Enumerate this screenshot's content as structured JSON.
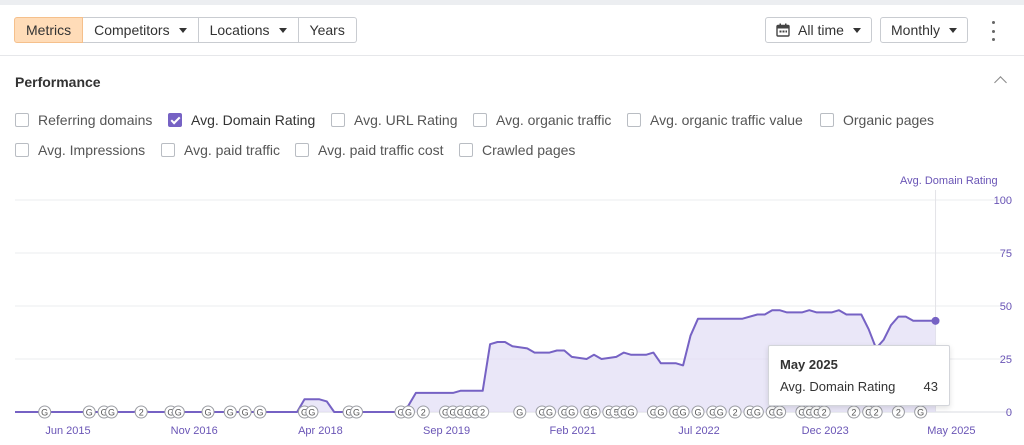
{
  "toolbar": {
    "tabs": [
      {
        "label": "Metrics",
        "active": true,
        "has_caret": false
      },
      {
        "label": "Competitors",
        "active": false,
        "has_caret": true
      },
      {
        "label": "Locations",
        "active": false,
        "has_caret": true
      },
      {
        "label": "Years",
        "active": false,
        "has_caret": false
      }
    ],
    "date_range": "All time",
    "interval": "Monthly"
  },
  "performance": {
    "title": "Performance",
    "metrics_row1": [
      {
        "label": "Referring domains",
        "checked": false
      },
      {
        "label": "Avg. Domain Rating",
        "checked": true
      },
      {
        "label": "Avg. URL Rating",
        "checked": false
      },
      {
        "label": "Avg. organic traffic",
        "checked": false
      },
      {
        "label": "Avg. organic traffic value",
        "checked": false
      },
      {
        "label": "Organic pages",
        "checked": false
      }
    ],
    "metrics_row2": [
      {
        "label": "Avg. Impressions",
        "checked": false
      },
      {
        "label": "Avg. paid traffic",
        "checked": false
      },
      {
        "label": "Avg. paid traffic cost",
        "checked": false
      },
      {
        "label": "Crawled pages",
        "checked": false
      }
    ]
  },
  "colors": {
    "accent": "#7662c4",
    "active_tab_bg": "#ffdcb8",
    "area_fill": "#e3dff5"
  },
  "chart_data": {
    "type": "area",
    "title": "",
    "y_axis_label": "Avg. Domain Rating",
    "ylim": [
      0,
      100
    ],
    "yticks": [
      0,
      25,
      50,
      75,
      100
    ],
    "x_tick_labels": [
      "Jun 2015",
      "Nov 2016",
      "Apr 2018",
      "Sep 2019",
      "Feb 2021",
      "Jul 2022",
      "Dec 2023",
      "May 2025"
    ],
    "grid": true,
    "series": [
      {
        "name": "Avg. Domain Rating",
        "points": [
          [
            "2015-01",
            0
          ],
          [
            "2016-05",
            0
          ],
          [
            "2016-06",
            1
          ],
          [
            "2016-07",
            0
          ],
          [
            "2017-11",
            0
          ],
          [
            "2018-03",
            0
          ],
          [
            "2018-04",
            6
          ],
          [
            "2018-06",
            6
          ],
          [
            "2018-07",
            5
          ],
          [
            "2018-08",
            0
          ],
          [
            "2019-05",
            0
          ],
          [
            "2019-06",
            3
          ],
          [
            "2019-07",
            9
          ],
          [
            "2019-12",
            9
          ],
          [
            "2020-01",
            10
          ],
          [
            "2020-04",
            10
          ],
          [
            "2020-05",
            32
          ],
          [
            "2020-06",
            33
          ],
          [
            "2020-07",
            33
          ],
          [
            "2020-08",
            31
          ],
          [
            "2020-10",
            30
          ],
          [
            "2020-11",
            28
          ],
          [
            "2021-01",
            28
          ],
          [
            "2021-02",
            29
          ],
          [
            "2021-03",
            29
          ],
          [
            "2021-04",
            26
          ],
          [
            "2021-06",
            25
          ],
          [
            "2021-07",
            27
          ],
          [
            "2021-08",
            25
          ],
          [
            "2021-10",
            26
          ],
          [
            "2021-11",
            28
          ],
          [
            "2021-12",
            27
          ],
          [
            "2022-02",
            27
          ],
          [
            "2022-03",
            28
          ],
          [
            "2022-04",
            23
          ],
          [
            "2022-06",
            23
          ],
          [
            "2022-07",
            22
          ],
          [
            "2022-08",
            36
          ],
          [
            "2022-09",
            44
          ],
          [
            "2023-03",
            44
          ],
          [
            "2023-05",
            46
          ],
          [
            "2023-06",
            46
          ],
          [
            "2023-07",
            48
          ],
          [
            "2023-08",
            48
          ],
          [
            "2023-09",
            47
          ],
          [
            "2023-11",
            47
          ],
          [
            "2023-12",
            48
          ],
          [
            "2024-01",
            47
          ],
          [
            "2024-03",
            47
          ],
          [
            "2024-04",
            48
          ],
          [
            "2024-05",
            46
          ],
          [
            "2024-07",
            46
          ],
          [
            "2024-08",
            39
          ],
          [
            "2024-09",
            30
          ],
          [
            "2024-10",
            34
          ],
          [
            "2024-11",
            41
          ],
          [
            "2024-12",
            45
          ],
          [
            "2025-01",
            45
          ],
          [
            "2025-02",
            43
          ],
          [
            "2025-04",
            43
          ],
          [
            "2025-05",
            43
          ]
        ]
      }
    ],
    "highlight_point": {
      "date": "May 2025",
      "value": 43
    },
    "event_markers": [
      {
        "date": "2015-05",
        "label": "G"
      },
      {
        "date": "2015-11",
        "label": "G"
      },
      {
        "date": "2016-01",
        "label": "G"
      },
      {
        "date": "2016-02",
        "label": "G"
      },
      {
        "date": "2016-06",
        "label": "2"
      },
      {
        "date": "2016-10",
        "label": "G"
      },
      {
        "date": "2016-11",
        "label": "G"
      },
      {
        "date": "2017-03",
        "label": "G"
      },
      {
        "date": "2017-06",
        "label": "G"
      },
      {
        "date": "2017-08",
        "label": "G"
      },
      {
        "date": "2017-10",
        "label": "G"
      },
      {
        "date": "2018-04",
        "label": "G"
      },
      {
        "date": "2018-05",
        "label": "G"
      },
      {
        "date": "2018-10",
        "label": "G"
      },
      {
        "date": "2018-11",
        "label": "G"
      },
      {
        "date": "2019-05",
        "label": "G"
      },
      {
        "date": "2019-06",
        "label": "G"
      },
      {
        "date": "2019-08",
        "label": "2"
      },
      {
        "date": "2019-11",
        "label": "G"
      },
      {
        "date": "2019-12",
        "label": "G"
      },
      {
        "date": "2020-01",
        "label": "G"
      },
      {
        "date": "2020-02",
        "label": "G"
      },
      {
        "date": "2020-03",
        "label": "G"
      },
      {
        "date": "2020-04",
        "label": "2"
      },
      {
        "date": "2020-09",
        "label": "G"
      },
      {
        "date": "2020-12",
        "label": "G"
      },
      {
        "date": "2021-01",
        "label": "G"
      },
      {
        "date": "2021-03",
        "label": "G"
      },
      {
        "date": "2021-04",
        "label": "G"
      },
      {
        "date": "2021-06",
        "label": "G"
      },
      {
        "date": "2021-07",
        "label": "G"
      },
      {
        "date": "2021-09",
        "label": "G"
      },
      {
        "date": "2021-10",
        "label": "5"
      },
      {
        "date": "2021-11",
        "label": "G"
      },
      {
        "date": "2021-12",
        "label": "G"
      },
      {
        "date": "2022-03",
        "label": "G"
      },
      {
        "date": "2022-04",
        "label": "G"
      },
      {
        "date": "2022-06",
        "label": "G"
      },
      {
        "date": "2022-07",
        "label": "G"
      },
      {
        "date": "2022-09",
        "label": "G"
      },
      {
        "date": "2022-11",
        "label": "G"
      },
      {
        "date": "2022-12",
        "label": "G"
      },
      {
        "date": "2023-02",
        "label": "2"
      },
      {
        "date": "2023-04",
        "label": "G"
      },
      {
        "date": "2023-05",
        "label": "G"
      },
      {
        "date": "2023-07",
        "label": "G"
      },
      {
        "date": "2023-08",
        "label": "G"
      },
      {
        "date": "2023-11",
        "label": "G"
      },
      {
        "date": "2023-12",
        "label": "G"
      },
      {
        "date": "2024-01",
        "label": "G"
      },
      {
        "date": "2024-02",
        "label": "2"
      },
      {
        "date": "2024-06",
        "label": "2"
      },
      {
        "date": "2024-08",
        "label": "G"
      },
      {
        "date": "2024-09",
        "label": "2"
      },
      {
        "date": "2024-12",
        "label": "2"
      },
      {
        "date": "2025-03",
        "label": "G"
      }
    ]
  }
}
